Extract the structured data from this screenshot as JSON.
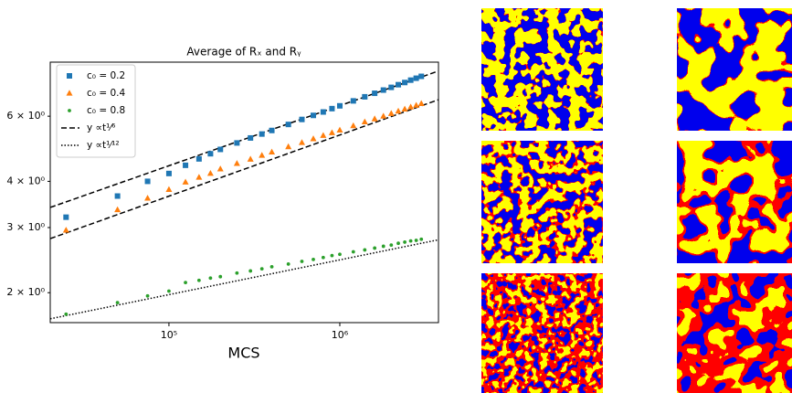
{
  "chart_data": {
    "type": "scatter",
    "title": "Average of Rₓ and Rᵧ",
    "x_label": "MCS",
    "log_x": true,
    "log_y": true,
    "xlim": [
      20200,
      3780000
    ],
    "ylim": [
      1.66,
      8.4
    ],
    "xticks": [
      {
        "value": 100000,
        "label": "10⁵"
      },
      {
        "value": 1000000,
        "label": "10⁶"
      }
    ],
    "yticks": [
      {
        "value": 2,
        "label": "2 × 10⁰"
      },
      {
        "value": 3,
        "label": "3 × 10⁰"
      },
      {
        "value": 4,
        "label": "4 × 10⁰"
      },
      {
        "value": 6,
        "label": "6 × 10⁰"
      }
    ],
    "legend": "upper-left",
    "x": [
      25000,
      50000,
      75000,
      100000,
      125000,
      150000,
      175000,
      200000,
      250000,
      300000,
      350000,
      400000,
      500000,
      600000,
      700000,
      800000,
      900000,
      1000000,
      1200000,
      1400000,
      1600000,
      1800000,
      2000000,
      2200000,
      2400000,
      2600000,
      2800000,
      3000000
    ],
    "series": [
      {
        "name": "c₀ = 0.2",
        "color": "#1f77b4",
        "marker": "square",
        "values": [
          3.2,
          3.65,
          4.0,
          4.2,
          4.42,
          4.6,
          4.75,
          4.88,
          5.08,
          5.24,
          5.37,
          5.49,
          5.7,
          5.88,
          6.03,
          6.16,
          6.29,
          6.4,
          6.6,
          6.77,
          6.92,
          7.06,
          7.18,
          7.3,
          7.4,
          7.51,
          7.6,
          7.69
        ]
      },
      {
        "name": "c₀ = 0.4",
        "color": "#ff7f0e",
        "marker": "triangle",
        "values": [
          2.95,
          3.35,
          3.6,
          3.8,
          3.98,
          4.1,
          4.2,
          4.32,
          4.47,
          4.59,
          4.7,
          4.8,
          4.96,
          5.09,
          5.21,
          5.32,
          5.41,
          5.5,
          5.65,
          5.79,
          5.9,
          6.0,
          6.1,
          6.19,
          6.27,
          6.35,
          6.42,
          6.49
        ]
      },
      {
        "name": "c₀ = 0.8",
        "color": "#2ca02c",
        "marker": "dot",
        "values": [
          1.75,
          1.88,
          1.96,
          2.02,
          2.13,
          2.16,
          2.19,
          2.21,
          2.26,
          2.29,
          2.32,
          2.35,
          2.39,
          2.43,
          2.46,
          2.49,
          2.52,
          2.54,
          2.58,
          2.61,
          2.64,
          2.67,
          2.69,
          2.72,
          2.74,
          2.76,
          2.77,
          2.79
        ]
      }
    ],
    "lines": [
      {
        "name": "y ∝t¹⁄⁶",
        "style": "dashed",
        "x": [
          20200,
          3780000
        ],
        "values": [
          3.4,
          7.95
        ]
      },
      {
        "style": "dashed",
        "x": [
          20200,
          3780000
        ],
        "values": [
          2.8,
          6.65
        ]
      },
      {
        "name": "y ∝t¹⁄¹²",
        "style": "dotted",
        "x": [
          20200,
          3780000
        ],
        "values": [
          1.7,
          2.78
        ]
      }
    ]
  }
}
